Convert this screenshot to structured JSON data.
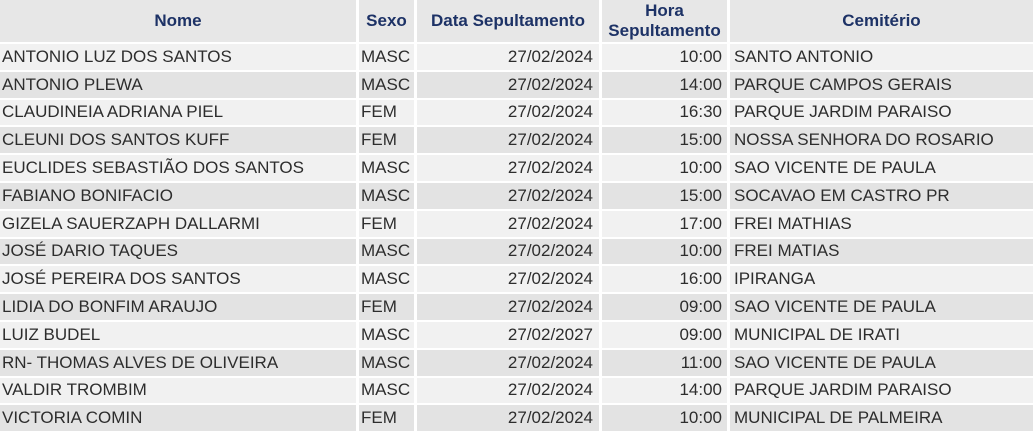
{
  "colors": {
    "header_bg": "#e7e7e7",
    "header_text": "#1d3266",
    "row_odd": "#f1f1f1",
    "row_even": "#e3e3e3",
    "cell_text": "#2d2d2d",
    "separator": "#ffffff"
  },
  "table": {
    "columns": [
      {
        "key": "nome",
        "label": "Nome"
      },
      {
        "key": "sexo",
        "label": "Sexo"
      },
      {
        "key": "data",
        "label": "Data Sepultamento"
      },
      {
        "key": "hora",
        "label": "Hora Sepultamento"
      },
      {
        "key": "cemiterio",
        "label": "Cemitério"
      }
    ],
    "rows": [
      {
        "nome": "ANTONIO LUZ DOS SANTOS",
        "sexo": "MASC",
        "data": "27/02/2024",
        "hora": "10:00",
        "cemiterio": "SANTO ANTONIO"
      },
      {
        "nome": "ANTONIO PLEWA",
        "sexo": "MASC",
        "data": "27/02/2024",
        "hora": "14:00",
        "cemiterio": "PARQUE CAMPOS GERAIS"
      },
      {
        "nome": "CLAUDINEIA ADRIANA PIEL",
        "sexo": "FEM",
        "data": "27/02/2024",
        "hora": "16:30",
        "cemiterio": "PARQUE JARDIM PARAISO"
      },
      {
        "nome": "CLEUNI DOS SANTOS KUFF",
        "sexo": "FEM",
        "data": "27/02/2024",
        "hora": "15:00",
        "cemiterio": "NOSSA SENHORA DO ROSARIO"
      },
      {
        "nome": "EUCLIDES SEBASTIÃO DOS SANTOS",
        "sexo": "MASC",
        "data": "27/02/2024",
        "hora": "10:00",
        "cemiterio": "SAO VICENTE DE PAULA"
      },
      {
        "nome": "FABIANO BONIFACIO",
        "sexo": "MASC",
        "data": "27/02/2024",
        "hora": "15:00",
        "cemiterio": "SOCAVAO EM CASTRO PR"
      },
      {
        "nome": "GIZELA SAUERZAPH DALLARMI",
        "sexo": "FEM",
        "data": "27/02/2024",
        "hora": "17:00",
        "cemiterio": "FREI MATHIAS"
      },
      {
        "nome": "JOSÉ DARIO TAQUES",
        "sexo": "MASC",
        "data": "27/02/2024",
        "hora": "10:00",
        "cemiterio": "FREI MATIAS"
      },
      {
        "nome": "JOSÉ PEREIRA DOS SANTOS",
        "sexo": "MASC",
        "data": "27/02/2024",
        "hora": "16:00",
        "cemiterio": "IPIRANGA"
      },
      {
        "nome": "LIDIA DO BONFIM ARAUJO",
        "sexo": "FEM",
        "data": "27/02/2024",
        "hora": "09:00",
        "cemiterio": "SAO VICENTE DE PAULA"
      },
      {
        "nome": "LUIZ BUDEL",
        "sexo": "MASC",
        "data": "27/02/2027",
        "hora": "09:00",
        "cemiterio": "MUNICIPAL DE IRATI"
      },
      {
        "nome": "RN- THOMAS ALVES DE OLIVEIRA",
        "sexo": "MASC",
        "data": "27/02/2024",
        "hora": "11:00",
        "cemiterio": "SAO VICENTE DE PAULA"
      },
      {
        "nome": "VALDIR TROMBIM",
        "sexo": "MASC",
        "data": "27/02/2024",
        "hora": "14:00",
        "cemiterio": "PARQUE JARDIM PARAISO"
      },
      {
        "nome": "VICTORIA COMIN",
        "sexo": "FEM",
        "data": "27/02/2024",
        "hora": "10:00",
        "cemiterio": "MUNICIPAL DE PALMEIRA"
      }
    ]
  }
}
